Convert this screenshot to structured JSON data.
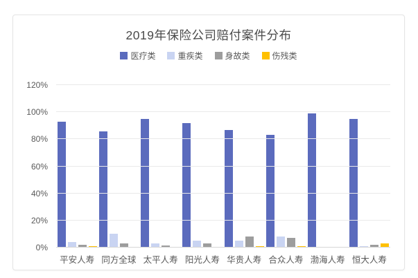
{
  "chart_data": {
    "type": "bar",
    "title": "2019年保险公司赔付案件分布",
    "categories": [
      "平安人寿",
      "同方全球",
      "太平人寿",
      "阳光人寿",
      "华贵人寿",
      "合众人寿",
      "渤海人寿",
      "恒大人寿"
    ],
    "series": [
      {
        "name": "医疗类",
        "color": "#5b6bbd",
        "values": [
          93,
          86,
          95,
          92,
          87,
          83,
          99,
          95
        ]
      },
      {
        "name": "重疾类",
        "color": "#c9d4f2",
        "values": [
          4,
          10,
          3,
          5,
          5,
          8,
          0.5,
          1
        ]
      },
      {
        "name": "身故类",
        "color": "#9d9d9d",
        "values": [
          2,
          3,
          1.5,
          3,
          8,
          7,
          0.5,
          2
        ]
      },
      {
        "name": "伤残类",
        "color": "#ffc000",
        "values": [
          1,
          0,
          0,
          0,
          1,
          1,
          0,
          3
        ]
      }
    ],
    "xlabel": "",
    "ylabel": "",
    "ylim": [
      0,
      120
    ],
    "y_ticks": [
      "0%",
      "20%",
      "40%",
      "60%",
      "80%",
      "100%",
      "120%"
    ],
    "grid": true,
    "legend_position": "top",
    "colors": {
      "title_text": "#4a4a4a",
      "axis_text": "#595959",
      "gridline": "#e9e9e9",
      "card_border": "#e4e4e4",
      "background": "#ffffff"
    }
  }
}
